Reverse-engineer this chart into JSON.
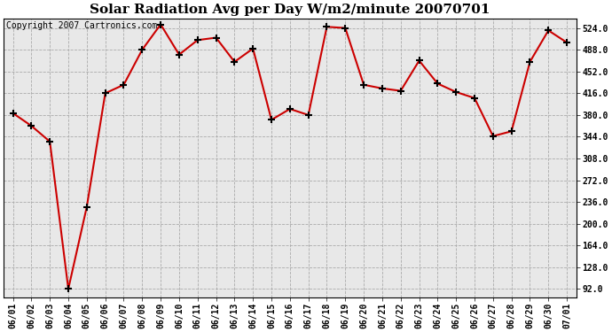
{
  "title": "Solar Radiation Avg per Day W/m2/minute 20070701",
  "copyright_text": "Copyright 2007 Cartronics.com",
  "dates": [
    "06/01",
    "06/02",
    "06/03",
    "06/04",
    "06/05",
    "06/06",
    "06/07",
    "06/08",
    "06/09",
    "06/10",
    "06/11",
    "06/12",
    "06/13",
    "06/14",
    "06/15",
    "06/16",
    "06/17",
    "06/18",
    "06/19",
    "06/20",
    "06/21",
    "06/22",
    "06/23",
    "06/24",
    "06/25",
    "06/26",
    "06/27",
    "06/28",
    "06/29",
    "06/30",
    "07/01"
  ],
  "values": [
    383,
    362,
    336,
    92,
    228,
    416,
    430,
    488,
    530,
    480,
    504,
    508,
    468,
    490,
    372,
    390,
    380,
    526,
    524,
    430,
    424,
    420,
    470,
    432,
    418,
    408,
    345,
    353,
    468,
    520,
    500
  ],
  "ylim": [
    78,
    540
  ],
  "yticks": [
    92.0,
    128.0,
    164.0,
    200.0,
    236.0,
    272.0,
    308.0,
    344.0,
    380.0,
    416.0,
    452.0,
    488.0,
    524.0
  ],
  "line_color": "#cc0000",
  "marker": "+",
  "marker_color": "#000000",
  "bg_color": "#ffffff",
  "plot_bg_color": "#e8e8e8",
  "grid_color": "#aaaaaa",
  "title_fontsize": 11,
  "copyright_fontsize": 7,
  "tick_fontsize": 7
}
